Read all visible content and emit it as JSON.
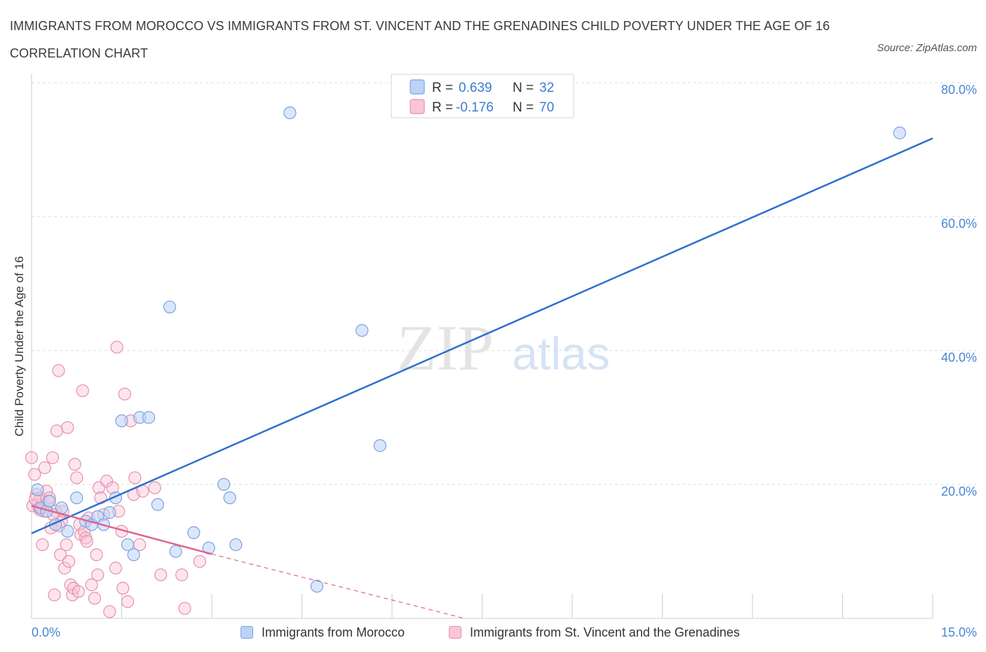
{
  "title": "IMMIGRANTS FROM MOROCCO VS IMMIGRANTS FROM ST. VINCENT AND THE GRENADINES CHILD POVERTY UNDER THE AGE OF 16 CORRELATION CHART",
  "source": "Source: ZipAtlas.com",
  "watermark": {
    "zip": "ZIP",
    "atlas": "atlas"
  },
  "legend": {
    "rows": [
      {
        "r_label": "R =",
        "r_value": "0.639",
        "n_label": "N =",
        "n_value": "32"
      },
      {
        "r_label": "R =",
        "r_value": "-0.176",
        "n_label": "N =",
        "n_value": "70"
      }
    ]
  },
  "bottom_legend": [
    "Immigrants from Morocco",
    "Immigrants from St. Vincent and the Grenadines"
  ],
  "colors": {
    "morocco_fill": "#bcd3f5",
    "morocco_stroke": "#7aa3e0",
    "morocco_line": "#2f6fce",
    "svg_fill": "#f8c6d6",
    "svg_stroke": "#e98fb0",
    "svg_line": "#e0638f",
    "tick_text": "#4a86d4",
    "grid": "#dddddd"
  },
  "chart_data": {
    "type": "scatter",
    "title": "IMMIGRANTS FROM MOROCCO VS IMMIGRANTS FROM ST. VINCENT AND THE GRENADINES CHILD POVERTY UNDER THE AGE OF 16 CORRELATION CHART",
    "xlabel": "",
    "ylabel": "Child Poverty Under the Age of 16",
    "xlim": [
      0,
      15
    ],
    "ylim": [
      0,
      80
    ],
    "x_tick_labels": [
      "0.0%",
      "15.0%"
    ],
    "y_ticks": [
      20,
      40,
      60,
      80
    ],
    "y_tick_labels": [
      "20.0%",
      "40.0%",
      "60.0%",
      "80.0%"
    ],
    "grid": true,
    "series": [
      {
        "name": "Immigrants from Morocco",
        "R": 0.639,
        "N": 32,
        "trend": {
          "x": [
            0,
            15
          ],
          "y": [
            12.7,
            71.7
          ]
        },
        "points": [
          [
            0.1,
            19.2
          ],
          [
            0.15,
            16.5
          ],
          [
            0.25,
            16.0
          ],
          [
            0.4,
            14.0
          ],
          [
            0.5,
            16.5
          ],
          [
            0.6,
            13.0
          ],
          [
            0.75,
            18.0
          ],
          [
            0.9,
            14.5
          ],
          [
            1.0,
            14.0
          ],
          [
            1.1,
            15.2
          ],
          [
            1.2,
            14.0
          ],
          [
            1.3,
            15.8
          ],
          [
            1.4,
            18.0
          ],
          [
            1.5,
            29.5
          ],
          [
            1.6,
            11.0
          ],
          [
            1.7,
            9.5
          ],
          [
            1.8,
            30.0
          ],
          [
            1.95,
            30.0
          ],
          [
            2.1,
            17.0
          ],
          [
            2.3,
            46.5
          ],
          [
            2.4,
            10.0
          ],
          [
            2.7,
            12.8
          ],
          [
            2.95,
            10.5
          ],
          [
            3.2,
            20.0
          ],
          [
            3.3,
            18.0
          ],
          [
            3.4,
            11.0
          ],
          [
            4.3,
            75.5
          ],
          [
            4.75,
            4.8
          ],
          [
            5.5,
            43.0
          ],
          [
            5.8,
            25.8
          ],
          [
            14.45,
            72.5
          ],
          [
            0.3,
            17.5
          ]
        ]
      },
      {
        "name": "Immigrants from St. Vincent and the Grenadines",
        "R": -0.176,
        "N": 70,
        "trend": {
          "x": [
            0,
            3.0
          ],
          "y": [
            16.8,
            9.6
          ]
        },
        "trend_extension": {
          "x": [
            3.0,
            7.2
          ],
          "y": [
            9.6,
            0
          ]
        },
        "points": [
          [
            0.0,
            24.0
          ],
          [
            0.05,
            21.5
          ],
          [
            0.08,
            18.5
          ],
          [
            0.1,
            17.0
          ],
          [
            0.12,
            16.5
          ],
          [
            0.15,
            18.0
          ],
          [
            0.18,
            11.0
          ],
          [
            0.2,
            16.0
          ],
          [
            0.22,
            22.5
          ],
          [
            0.25,
            19.0
          ],
          [
            0.28,
            17.5
          ],
          [
            0.3,
            18.0
          ],
          [
            0.32,
            13.5
          ],
          [
            0.35,
            24.0
          ],
          [
            0.38,
            3.5
          ],
          [
            0.4,
            16.0
          ],
          [
            0.42,
            28.0
          ],
          [
            0.45,
            37.0
          ],
          [
            0.48,
            9.5
          ],
          [
            0.5,
            14.5
          ],
          [
            0.52,
            16.0
          ],
          [
            0.55,
            7.5
          ],
          [
            0.58,
            11.0
          ],
          [
            0.6,
            28.5
          ],
          [
            0.62,
            8.5
          ],
          [
            0.65,
            5.0
          ],
          [
            0.68,
            3.5
          ],
          [
            0.7,
            4.5
          ],
          [
            0.72,
            23.0
          ],
          [
            0.75,
            21.0
          ],
          [
            0.78,
            4.0
          ],
          [
            0.8,
            14.0
          ],
          [
            0.82,
            12.5
          ],
          [
            0.85,
            34.0
          ],
          [
            0.88,
            13.0
          ],
          [
            0.9,
            12.0
          ],
          [
            0.92,
            11.5
          ],
          [
            0.95,
            15.0
          ],
          [
            1.0,
            5.0
          ],
          [
            1.05,
            3.0
          ],
          [
            1.08,
            9.5
          ],
          [
            1.1,
            6.5
          ],
          [
            1.12,
            19.5
          ],
          [
            1.15,
            18.0
          ],
          [
            1.2,
            15.5
          ],
          [
            1.25,
            20.5
          ],
          [
            1.3,
            1.0
          ],
          [
            1.35,
            19.5
          ],
          [
            1.4,
            7.5
          ],
          [
            1.42,
            40.5
          ],
          [
            1.45,
            16.0
          ],
          [
            1.5,
            13.0
          ],
          [
            1.52,
            4.5
          ],
          [
            1.55,
            33.5
          ],
          [
            1.6,
            2.5
          ],
          [
            1.65,
            29.5
          ],
          [
            1.7,
            18.5
          ],
          [
            1.72,
            21.0
          ],
          [
            1.8,
            11.0
          ],
          [
            1.85,
            19.0
          ],
          [
            2.05,
            19.5
          ],
          [
            2.15,
            6.5
          ],
          [
            2.5,
            6.5
          ],
          [
            2.55,
            1.5
          ],
          [
            2.8,
            8.5
          ],
          [
            0.02,
            16.8
          ],
          [
            0.06,
            17.8
          ],
          [
            0.14,
            16.2
          ],
          [
            0.36,
            15.5
          ],
          [
            0.46,
            13.8
          ]
        ]
      }
    ]
  }
}
